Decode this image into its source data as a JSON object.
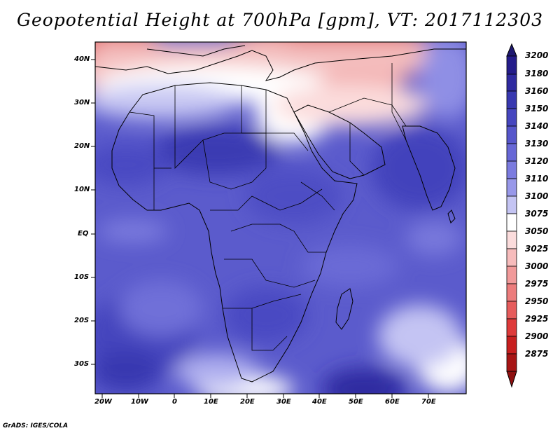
{
  "title": "Geopotential Height at 700hPa [gpm], VT: 2017112303",
  "credit": "GrADS: IGES/COLA",
  "lat_labels": [
    "40N",
    "30N",
    "20N",
    "10N",
    "EQ",
    "10S",
    "20S",
    "30S"
  ],
  "lon_labels": [
    "20W",
    "10W",
    "0",
    "10E",
    "20E",
    "30E",
    "40E",
    "50E",
    "60E",
    "70E"
  ],
  "colorbar": {
    "levels": [
      "3200",
      "3180",
      "3160",
      "3150",
      "3140",
      "3130",
      "3120",
      "3110",
      "3100",
      "3075",
      "3050",
      "3025",
      "3000",
      "2975",
      "2950",
      "2925",
      "2900",
      "2875"
    ],
    "colors": [
      "#241c8a",
      "#2f2aa0",
      "#3838b0",
      "#4646bf",
      "#5656cb",
      "#6767d6",
      "#7b7bdf",
      "#9898e9",
      "#c4c4f3",
      "#ffffff",
      "#fbdcdc",
      "#f7bcbc",
      "#f19a9a",
      "#ec7c7c",
      "#e65c5c",
      "#de3a3a",
      "#c71f1f",
      "#a71515"
    ]
  }
}
